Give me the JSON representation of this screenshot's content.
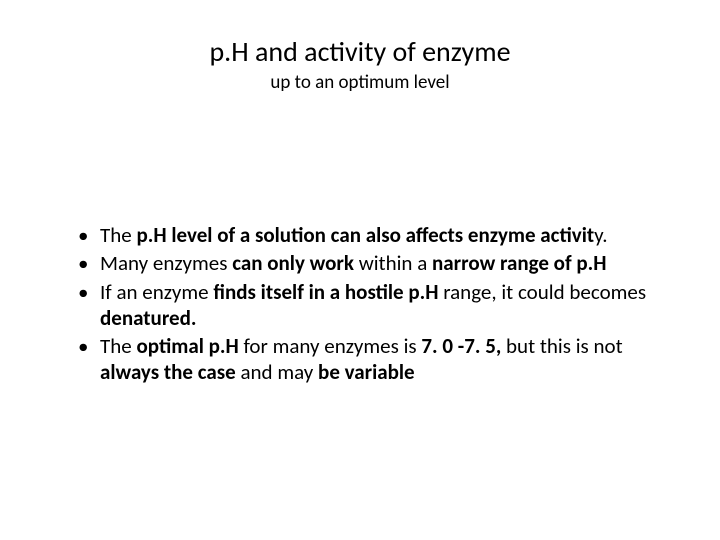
{
  "title": "p.H and activity of enzyme",
  "subtitle": "up to an optimum level",
  "bullets": {
    "b1a": "The ",
    "b1b": "p.H level of a solution can also affects enzyme activit",
    "b1c": "y.",
    "b2a": " Many enzymes",
    "b2b": " can only work ",
    "b2c": "within a ",
    "b2d": "narrow range of p.H",
    "b3a": "If an enzyme ",
    "b3b": "finds itself in a hostile p.H ",
    "b3c": "range, it could becomes ",
    "b3d": "denatured.",
    "b4a": "The ",
    "b4b": "optimal p.H ",
    "b4c": "for many enzymes is ",
    "b4d": "7. 0 -7. 5, ",
    "b4e": "but this is not ",
    "b4f": "always the case ",
    "b4g": "and may ",
    "b4h": "be variable"
  },
  "colors": {
    "background": "#ffffff",
    "text": "#000000"
  }
}
